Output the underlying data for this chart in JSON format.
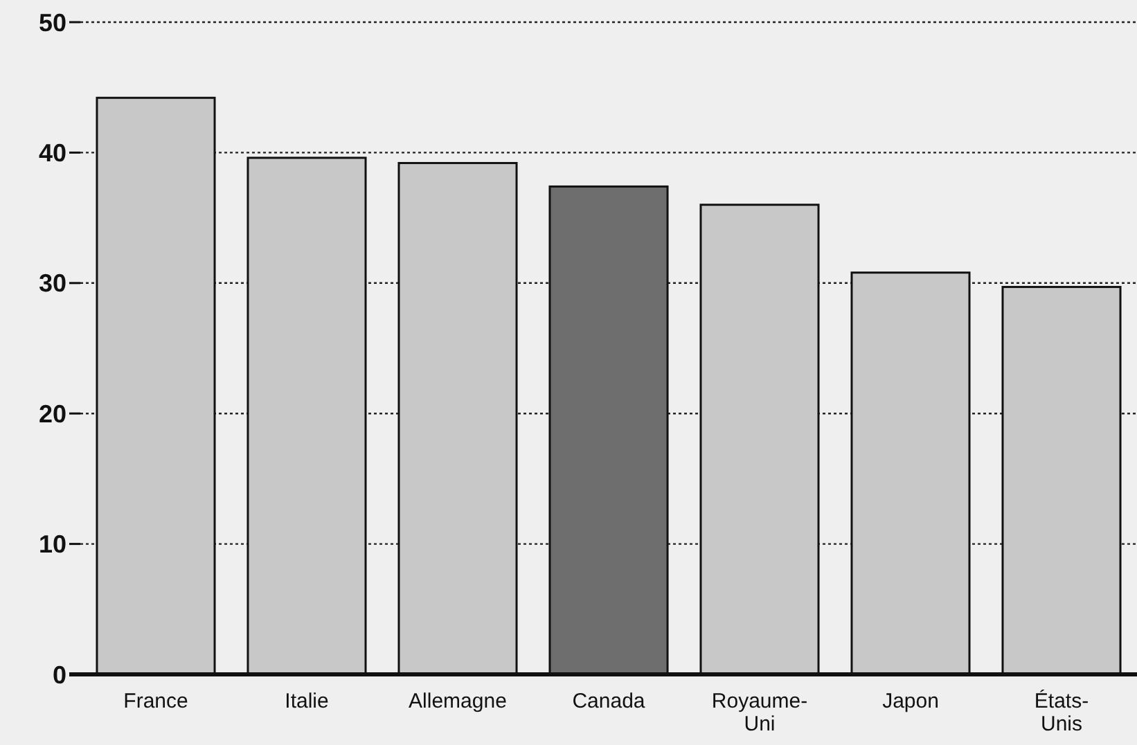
{
  "chart_data": {
    "type": "bar",
    "categories": [
      "France",
      "Italie",
      "Allemagne",
      "Canada",
      "Royaume-Uni",
      "Japon",
      "États-Unis"
    ],
    "values": [
      44.2,
      39.6,
      39.2,
      37.4,
      36.0,
      30.8,
      29.7
    ],
    "colors": [
      "#c8c8c8",
      "#c8c8c8",
      "#c8c8c8",
      "#6e6e6e",
      "#c8c8c8",
      "#c8c8c8",
      "#c8c8c8"
    ],
    "ylim": [
      0,
      50
    ],
    "yticks": [
      0,
      10,
      20,
      30,
      40,
      50
    ],
    "grid": "y"
  }
}
